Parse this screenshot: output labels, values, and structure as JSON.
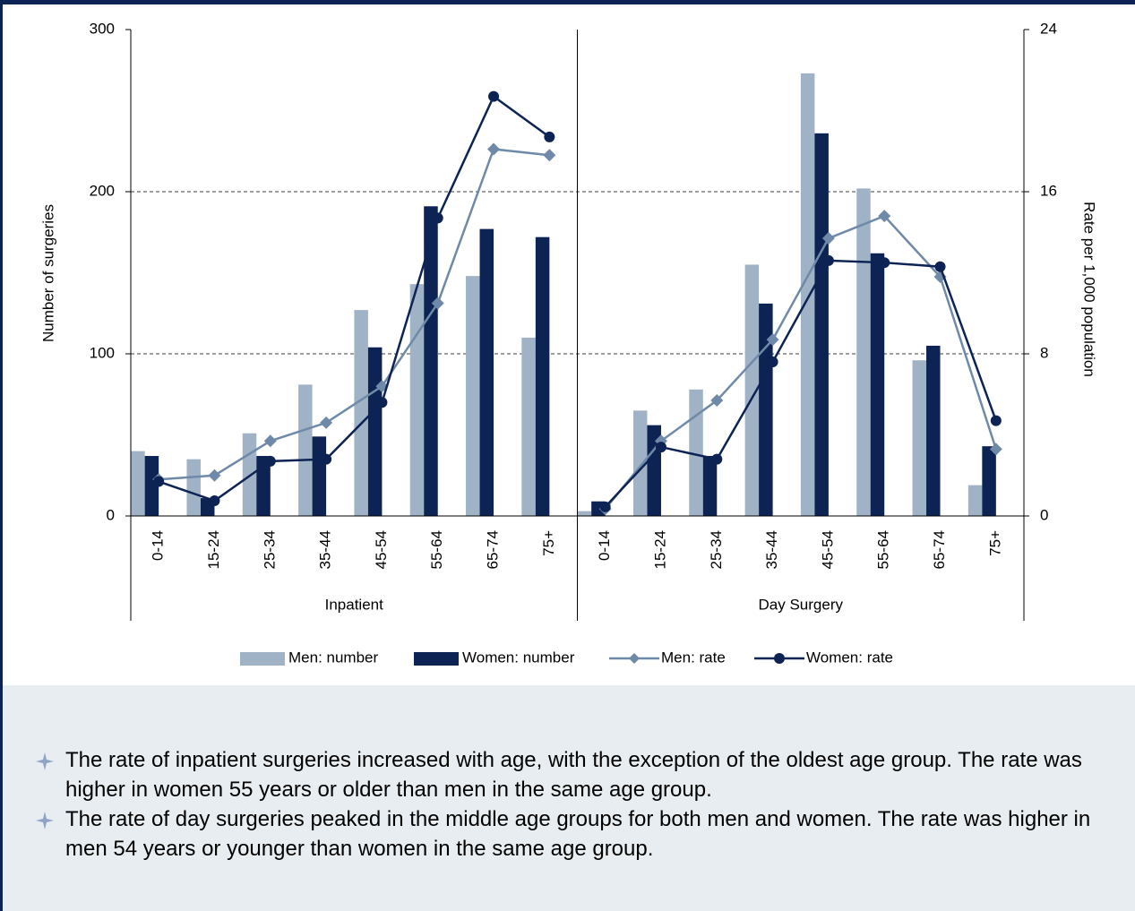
{
  "chart_data": {
    "type": "bar-line-combo",
    "ylabel": "Number of surgeries",
    "y2label": "Rate per 1,000 population",
    "ylim": [
      0,
      300
    ],
    "yticks": [
      0,
      100,
      200,
      300
    ],
    "y2lim": [
      0,
      24
    ],
    "y2ticks": [
      0,
      8,
      16,
      24
    ],
    "grid": true,
    "panels": [
      {
        "label": "Inpatient",
        "categories": [
          "0-14",
          "15-24",
          "25-34",
          "35-44",
          "45-54",
          "55-64",
          "65-74",
          "75+"
        ]
      },
      {
        "label": "Day Surgery",
        "categories": [
          "0-14",
          "15-24",
          "25-34",
          "35-44",
          "45-54",
          "55-64",
          "65-74",
          "75+"
        ]
      }
    ],
    "series": [
      {
        "name": "Men: number",
        "type": "bar",
        "color": "#a0b3c6",
        "values": [
          [
            40,
            35,
            51,
            81,
            127,
            143,
            148,
            110
          ],
          [
            3,
            65,
            78,
            155,
            273,
            202,
            96,
            19
          ]
        ]
      },
      {
        "name": "Women: number",
        "type": "bar",
        "color": "#0c2354",
        "values": [
          [
            37,
            11,
            37,
            49,
            104,
            191,
            177,
            172
          ],
          [
            9,
            56,
            37,
            131,
            236,
            162,
            105,
            43
          ]
        ]
      },
      {
        "name": "Men: rate",
        "type": "line",
        "marker": "diamond",
        "axis": "y2",
        "color": "#6f8aa8",
        "values": [
          [
            1.8,
            2.0,
            3.7,
            4.6,
            6.4,
            10.5,
            18.1,
            17.8
          ],
          [
            0.35,
            3.7,
            5.7,
            8.7,
            13.7,
            14.8,
            11.8,
            3.3
          ]
        ]
      },
      {
        "name": "Women: rate",
        "type": "line",
        "marker": "circle",
        "axis": "y2",
        "color": "#0c2354",
        "values": [
          [
            1.7,
            0.75,
            2.7,
            2.8,
            5.6,
            14.7,
            20.7,
            18.7
          ],
          [
            0.45,
            3.4,
            2.8,
            7.6,
            12.6,
            12.5,
            12.3,
            4.7
          ]
        ]
      }
    ]
  },
  "notes": [
    "The rate of inpatient surgeries increased with age, with the exception of the oldest age group. The rate was higher in women 55 years or older than men in the same age group.",
    "The rate of day surgeries peaked in the middle age groups for both men and women. The rate was higher in men 54 years or younger than women in the same age group."
  ]
}
